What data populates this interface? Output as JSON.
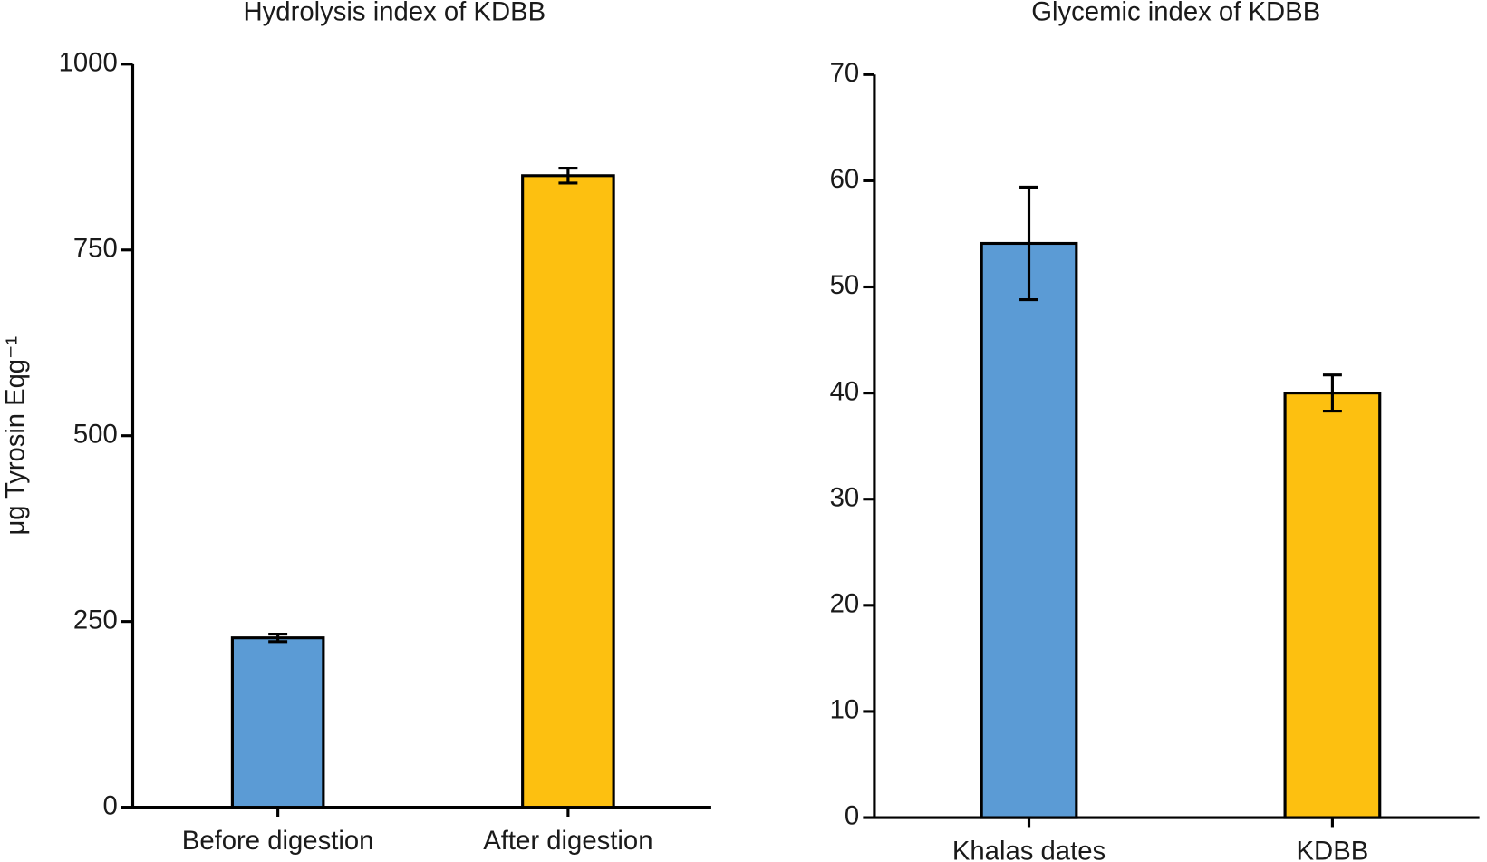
{
  "chart_data": [
    {
      "type": "bar",
      "title": "Hydrolysis index of KDBB",
      "y_label": "μg Tyrosin Eqg⁻¹",
      "categories": [
        "Before digestion",
        "After digestion"
      ],
      "values": [
        228,
        850
      ],
      "errors": [
        5,
        10
      ],
      "colors": [
        "#5b9bd5",
        "#fdc010"
      ],
      "ylim": [
        0,
        1000
      ],
      "yticks": [
        0,
        250,
        500,
        750,
        1000
      ]
    },
    {
      "type": "bar",
      "title": "Glycemic index of KDBB",
      "categories": [
        "Khalas dates",
        "KDBB"
      ],
      "values": [
        54.1,
        40
      ],
      "errors": [
        5.3,
        1.7
      ],
      "colors": [
        "#5b9bd5",
        "#fdc010"
      ],
      "ylim": [
        0,
        70
      ],
      "yticks": [
        0,
        10,
        20,
        30,
        40,
        50,
        60,
        70
      ]
    }
  ]
}
